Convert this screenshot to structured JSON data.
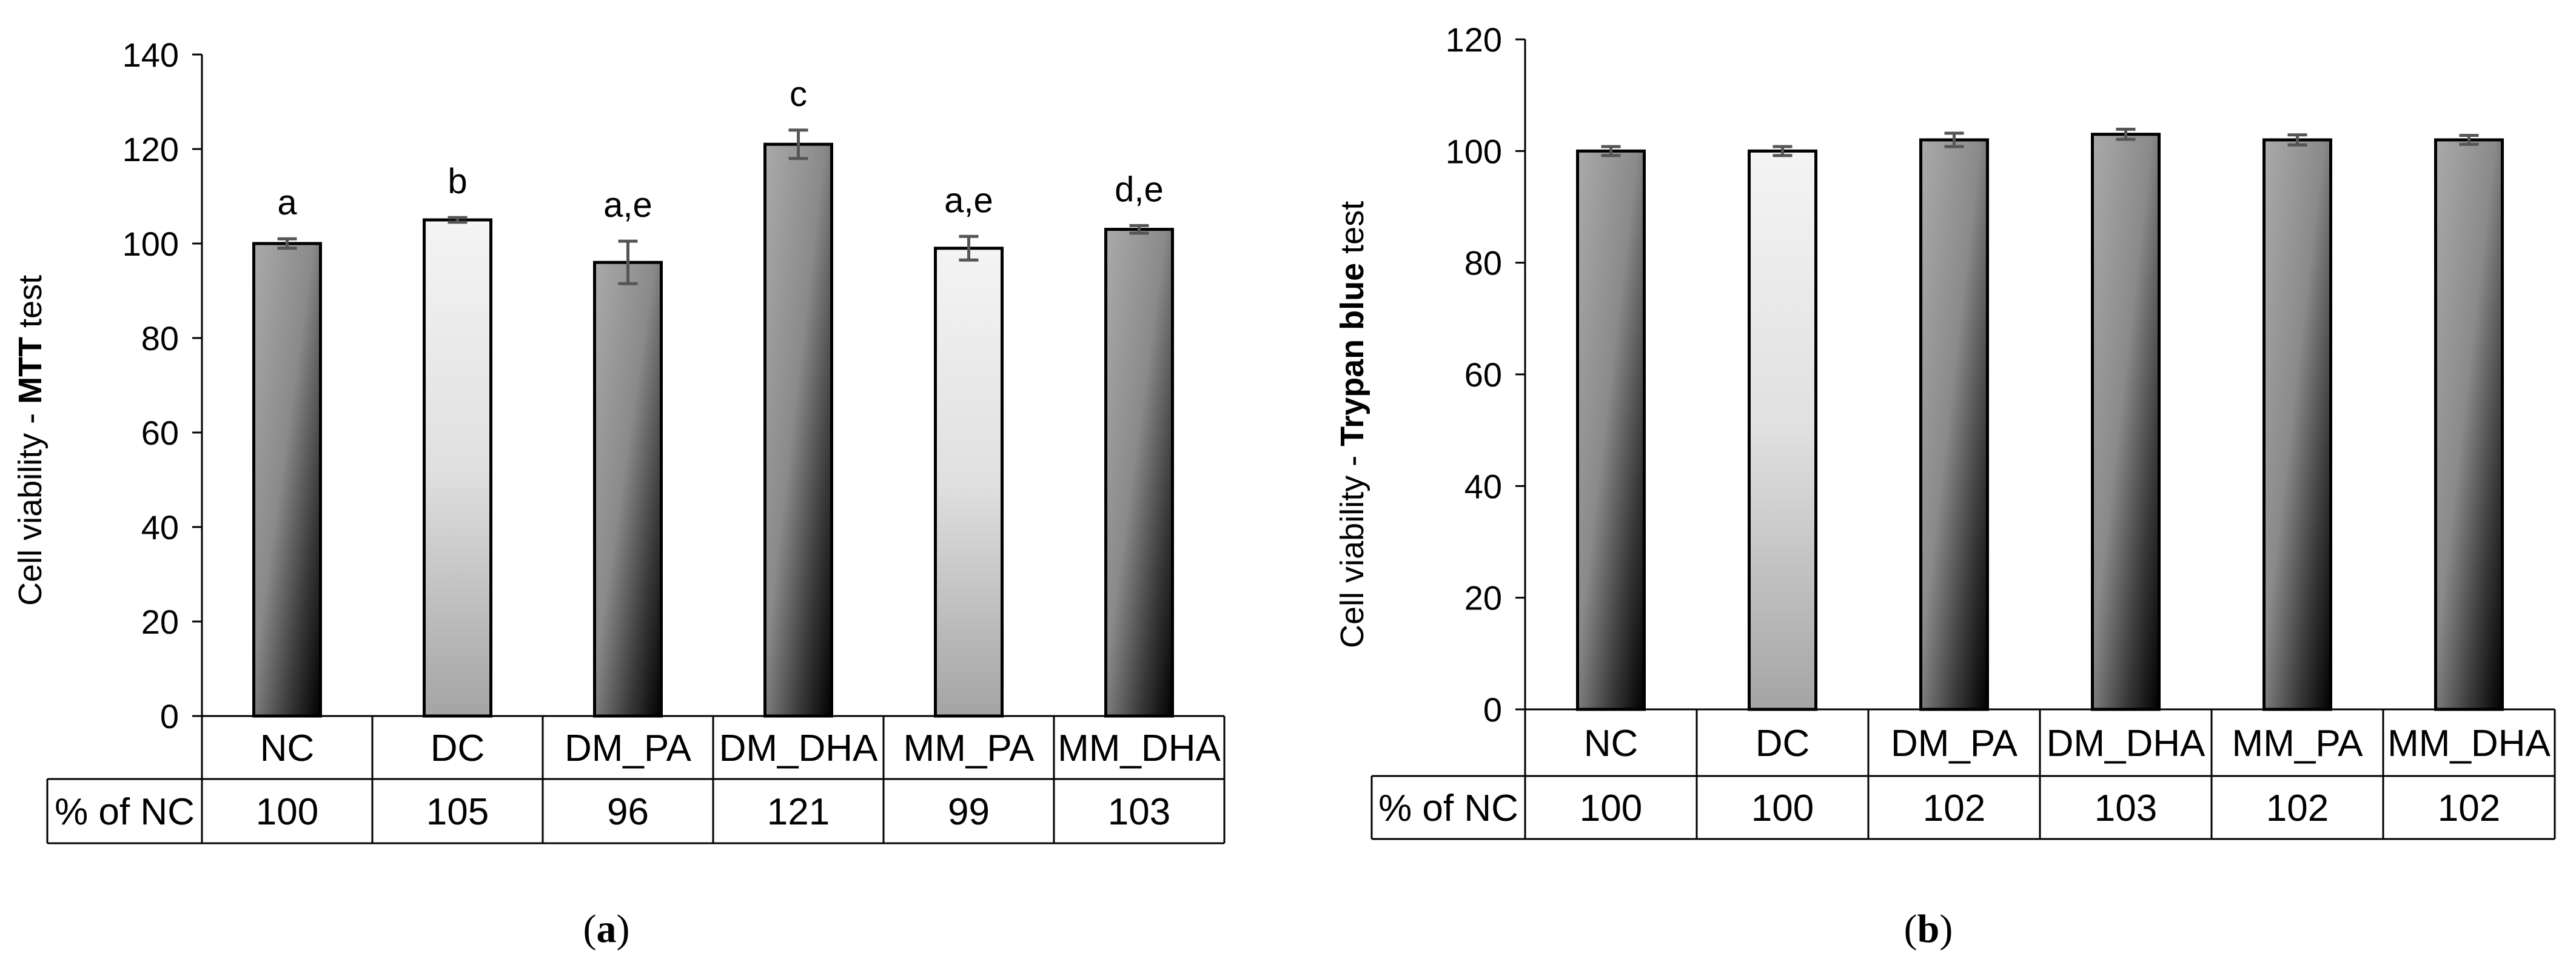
{
  "chart_data": [
    {
      "type": "bar",
      "panel_label": "a",
      "ylabel_prefix": "Cell viability  - ",
      "ylabel_bold": "MTT",
      "ylabel_suffix": " test",
      "ylim": [
        0,
        140
      ],
      "yticks": [
        0,
        20,
        40,
        60,
        80,
        100,
        120,
        140
      ],
      "categories": [
        "NC",
        "DC",
        "DM_PA",
        "DM_DHA",
        "MM_PA",
        "MM_DHA"
      ],
      "values": [
        100,
        105,
        96,
        121,
        99,
        103
      ],
      "errors": [
        1,
        0.5,
        4.5,
        3,
        2.5,
        0.8
      ],
      "significance": [
        "a",
        "b",
        "a,e",
        "c",
        "a,e",
        "d,e"
      ],
      "fills": [
        "dark",
        "light",
        "dark",
        "dark",
        "light",
        "dark"
      ],
      "table_row_label": "% of NC",
      "table_values": [
        "100",
        "105",
        "96",
        "121",
        "99",
        "103"
      ],
      "grid": false
    },
    {
      "type": "bar",
      "panel_label": "b",
      "ylabel_prefix": "Cell viability  - ",
      "ylabel_bold": "Trypan blue",
      "ylabel_suffix": " test",
      "ylim": [
        0,
        120
      ],
      "yticks": [
        0,
        20,
        40,
        60,
        80,
        100,
        120
      ],
      "categories": [
        "NC",
        "DC",
        "DM_PA",
        "DM_DHA",
        "MM_PA",
        "MM_DHA"
      ],
      "values": [
        100,
        100,
        102,
        103,
        102,
        102
      ],
      "errors": [
        0.8,
        0.8,
        1.2,
        0.9,
        0.9,
        0.8
      ],
      "significance": [],
      "fills": [
        "dark",
        "light",
        "dark",
        "dark",
        "dark",
        "dark"
      ],
      "table_row_label": "% of NC",
      "table_values": [
        "100",
        "100",
        "102",
        "103",
        "102",
        "102"
      ],
      "grid": false
    }
  ]
}
